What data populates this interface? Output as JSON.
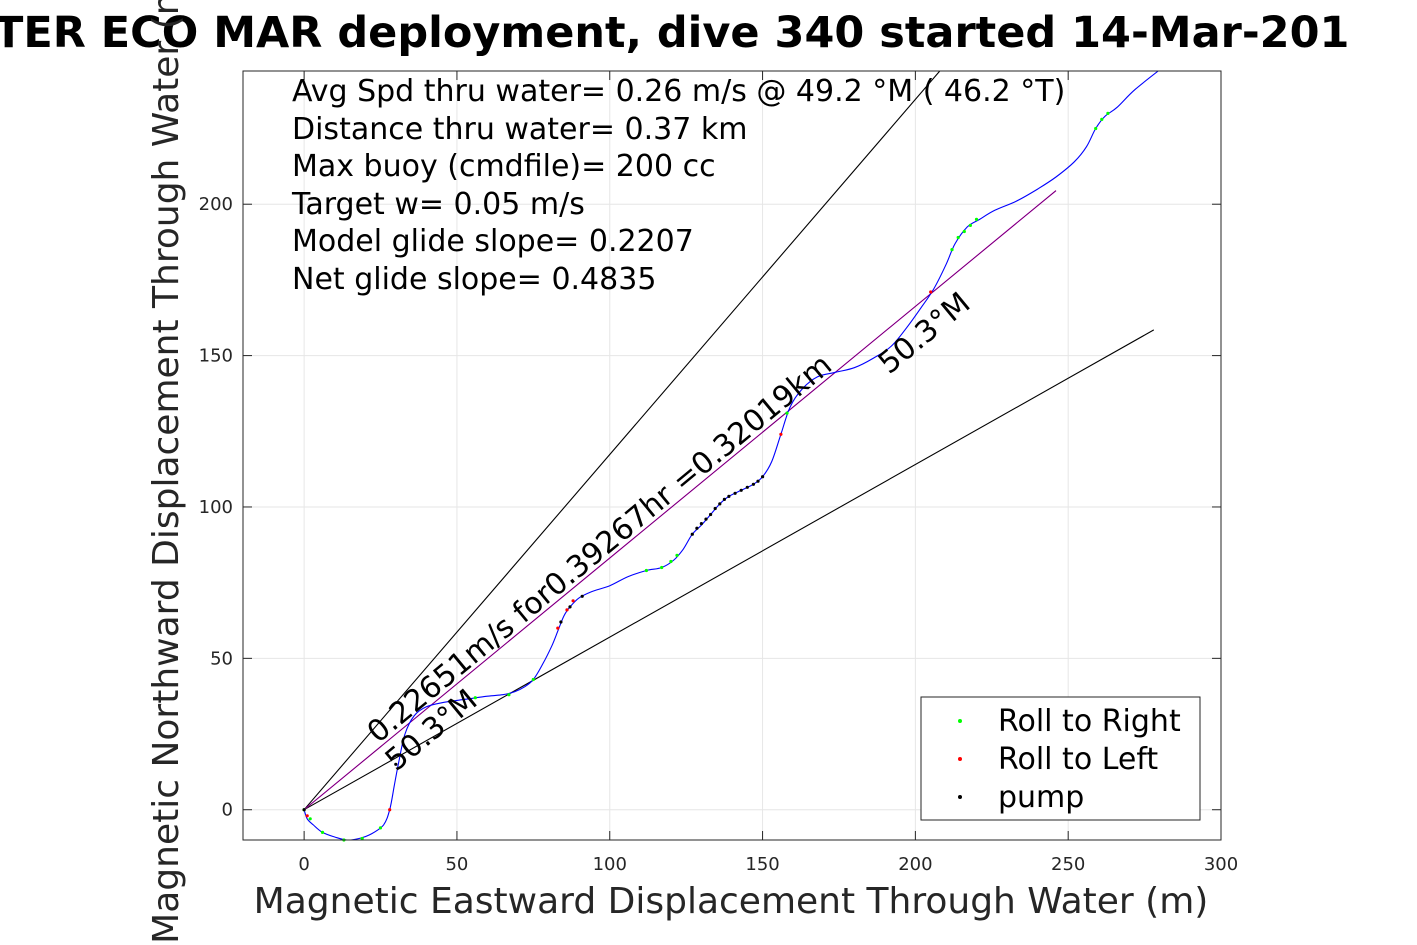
{
  "chart_data": {
    "type": "line",
    "title": "TER ECO MAR deployment, dive 340 started 14-Mar-201",
    "xlabel": "Magnetic Eastward Displacement Through Water (m)",
    "ylabel": "Magnetic Northward Displacement Through Water (m)",
    "xlim": [
      -20,
      300
    ],
    "ylim": [
      -10,
      244
    ],
    "x_ticks": [
      0,
      50,
      100,
      150,
      200,
      250,
      300
    ],
    "y_ticks": [
      0,
      50,
      100,
      150,
      200
    ],
    "grid": true,
    "legend_position": "bottom-right",
    "stats": [
      "Avg Spd thru water=  0.26 m/s @  49.2 °M ( 46.2 °T)",
      "Distance thru water=  0.37 km",
      "Max buoy (cmdfile)= 200 cc",
      "Target w= 0.05 m/s",
      "Model glide slope= 0.2207",
      "Net glide slope= 0.4835"
    ],
    "annotations": {
      "track_label": "0.22651m/s for0.39267hr =0.32019km",
      "heading_start": "50.3°M",
      "heading_end": "50.3°M"
    },
    "legend": [
      {
        "label": "Roll to Right",
        "color": "#00ff00"
      },
      {
        "label": "Roll to Left",
        "color": "#ff0000"
      },
      {
        "label": "pump",
        "color": "#000000"
      }
    ],
    "colors": {
      "track": "#0000ff",
      "course_line": "#bf00bf",
      "cone_lines": "#000000",
      "roll_right": "#00ff00",
      "roll_left": "#ff0000",
      "pump": "#000000",
      "grid": "#e6e6e6"
    },
    "series": [
      {
        "name": "track",
        "points": [
          [
            0,
            0
          ],
          [
            1,
            -3
          ],
          [
            3,
            -5
          ],
          [
            6,
            -7.5
          ],
          [
            10,
            -9
          ],
          [
            14,
            -10
          ],
          [
            18,
            -9.5
          ],
          [
            22,
            -8
          ],
          [
            26,
            -5
          ],
          [
            28,
            0
          ],
          [
            29.5,
            8
          ],
          [
            31,
            16
          ],
          [
            33,
            25
          ],
          [
            36,
            31
          ],
          [
            40,
            34
          ],
          [
            46,
            35.5
          ],
          [
            53,
            36.5
          ],
          [
            60,
            37.5
          ],
          [
            65,
            38
          ],
          [
            69,
            39
          ],
          [
            72,
            40.5
          ],
          [
            75,
            43
          ],
          [
            78,
            48
          ],
          [
            81,
            54
          ],
          [
            83,
            59
          ],
          [
            85,
            64
          ],
          [
            87,
            67
          ],
          [
            90,
            70
          ],
          [
            94,
            72
          ],
          [
            100,
            74
          ],
          [
            106,
            77
          ],
          [
            112,
            79
          ],
          [
            117,
            80
          ],
          [
            121,
            82.5
          ],
          [
            124,
            86
          ],
          [
            127,
            91
          ],
          [
            130,
            94
          ],
          [
            133,
            97.5
          ],
          [
            136,
            101
          ],
          [
            139,
            103.5
          ],
          [
            143,
            105.5
          ],
          [
            147,
            107.5
          ],
          [
            150,
            110
          ],
          [
            153,
            115
          ],
          [
            156,
            124
          ],
          [
            159,
            133
          ],
          [
            163,
            139
          ],
          [
            168,
            143
          ],
          [
            174,
            144.5
          ],
          [
            180,
            146
          ],
          [
            186,
            149
          ],
          [
            192,
            153
          ],
          [
            197,
            159
          ],
          [
            202,
            166
          ],
          [
            206,
            172
          ],
          [
            210,
            180
          ],
          [
            213,
            187
          ],
          [
            217,
            192.5
          ],
          [
            221,
            195
          ],
          [
            226,
            198
          ],
          [
            233,
            201
          ],
          [
            240,
            205
          ],
          [
            246,
            209
          ],
          [
            252,
            214
          ],
          [
            256,
            219
          ],
          [
            259,
            225
          ],
          [
            262,
            229
          ],
          [
            266,
            232
          ],
          [
            272,
            238
          ],
          [
            282,
            246
          ]
        ]
      },
      {
        "name": "course",
        "points": [
          [
            0,
            0
          ],
          [
            246,
            204.5
          ]
        ]
      },
      {
        "name": "cone-left",
        "points": [
          [
            0,
            0
          ],
          [
            208,
            244
          ]
        ]
      },
      {
        "name": "cone-right",
        "points": [
          [
            0,
            0
          ],
          [
            278,
            158.5
          ]
        ]
      },
      {
        "name": "Roll to Right",
        "points": [
          [
            0,
            0
          ],
          [
            2,
            -3
          ],
          [
            6,
            -7.5
          ],
          [
            13,
            -10
          ],
          [
            19,
            -9.5
          ],
          [
            25,
            -6
          ],
          [
            56,
            37
          ],
          [
            67,
            38
          ],
          [
            75,
            43
          ],
          [
            112,
            79
          ],
          [
            117,
            80
          ],
          [
            120,
            82
          ],
          [
            122,
            84
          ],
          [
            158,
            131
          ],
          [
            212,
            185
          ],
          [
            214,
            189
          ],
          [
            216,
            191
          ],
          [
            218,
            193
          ],
          [
            220,
            195
          ],
          [
            259,
            225
          ],
          [
            261,
            228
          ],
          [
            263,
            230
          ]
        ]
      },
      {
        "name": "Roll to Left",
        "points": [
          [
            1,
            -2
          ],
          [
            28,
            0
          ],
          [
            83,
            60
          ],
          [
            86,
            66
          ],
          [
            88,
            69
          ],
          [
            156,
            124
          ],
          [
            205,
            171
          ]
        ]
      },
      {
        "name": "pump",
        "points": [
          [
            0,
            0
          ],
          [
            30,
            15
          ],
          [
            84,
            62
          ],
          [
            87,
            67
          ],
          [
            91,
            70.5
          ],
          [
            127,
            91
          ],
          [
            128.5,
            93
          ],
          [
            130,
            94.5
          ],
          [
            131.5,
            96
          ],
          [
            133,
            97.5
          ],
          [
            134.5,
            99.5
          ],
          [
            136,
            101
          ],
          [
            137.5,
            102.5
          ],
          [
            139,
            103.5
          ],
          [
            141,
            104.5
          ],
          [
            143,
            105.5
          ],
          [
            145,
            106.5
          ],
          [
            147,
            107.5
          ],
          [
            148.5,
            108.5
          ],
          [
            150,
            110
          ]
        ]
      }
    ]
  }
}
